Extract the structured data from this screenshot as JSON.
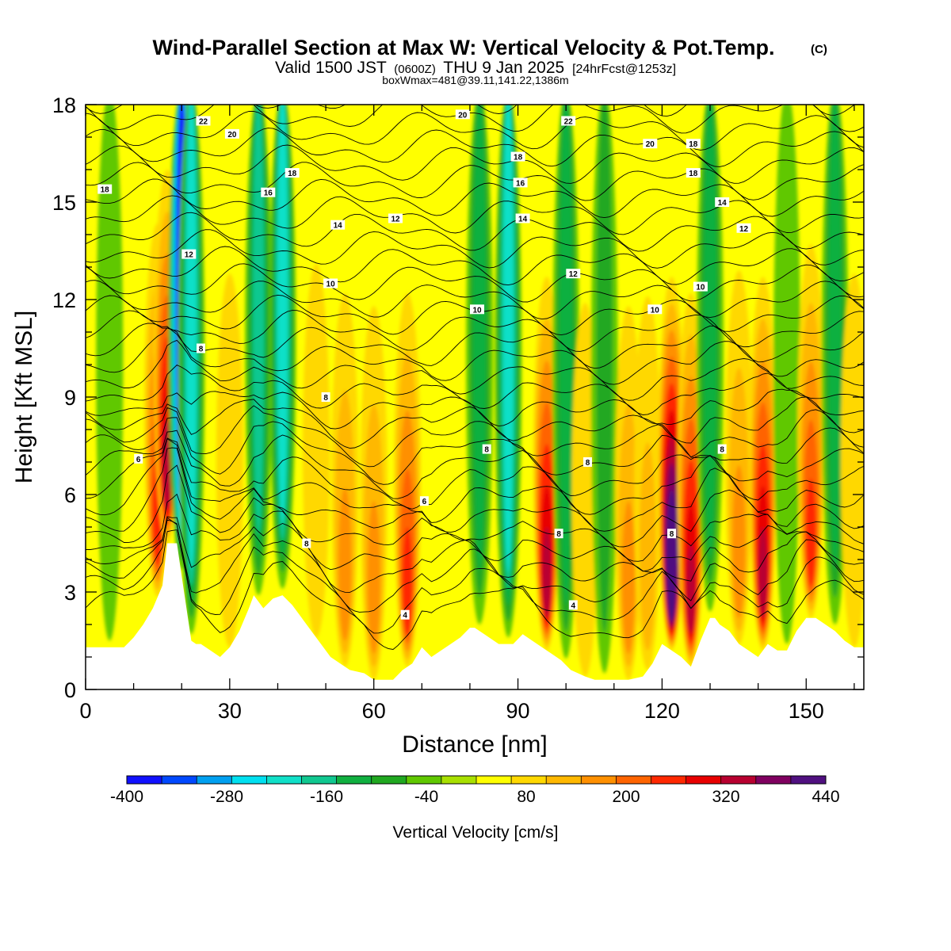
{
  "header": {
    "title": "Wind-Parallel Section at Max W: Vertical Velocity & Pot.Temp.",
    "copyright": "(C)",
    "valid_prefix": "Valid 1500 JST",
    "valid_utc": "(0600Z)",
    "valid_date": "THU 9 Jan 2025",
    "forecast_info": "[24hrFcst@1253z]",
    "box_info": "boxWmax=481@39.11,141.22,1386m"
  },
  "chart_data": {
    "type": "heatmap",
    "title": "Wind-Parallel Section at Max W: Vertical Velocity & Pot.Temp.",
    "xlabel": "Distance [nm]",
    "ylabel": "Height [Kft MSL]",
    "xlim": [
      0,
      162
    ],
    "ylim": [
      0,
      18
    ],
    "x_ticks": [
      "0",
      "30",
      "60",
      "90",
      "120",
      "150"
    ],
    "y_ticks": [
      "0",
      "3",
      "6",
      "9",
      "12",
      "15",
      "18"
    ],
    "colorbar": {
      "label": "Vertical Velocity [cm/s]",
      "min": -400,
      "max": 440,
      "step": 40,
      "tick_labels": [
        "-400",
        "-280",
        "-160",
        "-40",
        "80",
        "200",
        "320",
        "440"
      ],
      "colors": [
        "#1010ff",
        "#0048ff",
        "#00a0f0",
        "#00e0f0",
        "#10e0c8",
        "#10c890",
        "#10b040",
        "#20a820",
        "#60c800",
        "#a8e000",
        "#ffff00",
        "#ffd800",
        "#ffb800",
        "#ff9000",
        "#ff6400",
        "#ff2800",
        "#e80000",
        "#b80030",
        "#800060",
        "#501080"
      ]
    },
    "w_columns": [
      {
        "x": 5,
        "peak_cms": -40
      },
      {
        "x": 15,
        "peak_cms": 200
      },
      {
        "x": 17,
        "peak_cms": 280
      },
      {
        "x": 20,
        "peak_cms": -400
      },
      {
        "x": 22,
        "peak_cms": -200
      },
      {
        "x": 30,
        "peak_cms": 40
      },
      {
        "x": 36,
        "peak_cms": -160
      },
      {
        "x": 41,
        "peak_cms": -200
      },
      {
        "x": 48,
        "peak_cms": 40
      },
      {
        "x": 54,
        "peak_cms": 120
      },
      {
        "x": 60,
        "peak_cms": 120
      },
      {
        "x": 67,
        "peak_cms": 200
      },
      {
        "x": 75,
        "peak_cms": 0
      },
      {
        "x": 82,
        "peak_cms": -120
      },
      {
        "x": 88,
        "peak_cms": -200
      },
      {
        "x": 96,
        "peak_cms": 280
      },
      {
        "x": 100,
        "peak_cms": -120
      },
      {
        "x": 104,
        "peak_cms": 40
      },
      {
        "x": 108,
        "peak_cms": -80
      },
      {
        "x": 113,
        "peak_cms": 120
      },
      {
        "x": 117,
        "peak_cms": 80
      },
      {
        "x": 122,
        "peak_cms": 440
      },
      {
        "x": 126,
        "peak_cms": 280
      },
      {
        "x": 130,
        "peak_cms": -120
      },
      {
        "x": 136,
        "peak_cms": 120
      },
      {
        "x": 141,
        "peak_cms": 280
      },
      {
        "x": 146,
        "peak_cms": -40
      },
      {
        "x": 151,
        "peak_cms": 200
      },
      {
        "x": 156,
        "peak_cms": -120
      },
      {
        "x": 160,
        "peak_cms": 40
      }
    ],
    "terrain": {
      "x": [
        0,
        2,
        8,
        10,
        12,
        14,
        16,
        17,
        19,
        20,
        21,
        22,
        23,
        24,
        26,
        28,
        30,
        32,
        34,
        35,
        37,
        39,
        41,
        43,
        45,
        47,
        49,
        51,
        53,
        55,
        58,
        60,
        64,
        66,
        68,
        70,
        72,
        74,
        76,
        78,
        80,
        81,
        83,
        86,
        89,
        91,
        93,
        95,
        97,
        99,
        101,
        104,
        106,
        108,
        110,
        113,
        116,
        118,
        120,
        122,
        124,
        126,
        128,
        130,
        131,
        132,
        134,
        136,
        138,
        140,
        142,
        144,
        146,
        148,
        150,
        152,
        154,
        156,
        158,
        160,
        162
      ],
      "kft": [
        1.3,
        1.3,
        1.3,
        1.6,
        2.0,
        2.5,
        3.2,
        4.5,
        4.5,
        3.5,
        2.5,
        1.5,
        1.4,
        1.4,
        1.2,
        1.0,
        1.3,
        1.8,
        2.5,
        2.9,
        2.5,
        2.8,
        2.9,
        2.6,
        2.2,
        1.8,
        1.4,
        1.0,
        0.8,
        0.6,
        0.5,
        0.3,
        0.3,
        0.6,
        0.8,
        1.3,
        1.0,
        1.2,
        1.4,
        1.6,
        1.9,
        1.9,
        1.7,
        1.4,
        1.4,
        1.7,
        1.5,
        1.3,
        1.1,
        0.9,
        0.6,
        0.4,
        0.3,
        0.3,
        0.3,
        0.3,
        0.4,
        0.8,
        1.4,
        1.2,
        1.0,
        0.7,
        1.5,
        2.2,
        2.2,
        2.0,
        1.8,
        1.4,
        1.2,
        1.0,
        1.4,
        1.2,
        1.2,
        1.8,
        2.2,
        2.2,
        2.0,
        1.8,
        1.5,
        1.3,
        1.3
      ]
    },
    "theta_levels": [
      4,
      6,
      8,
      10,
      12,
      14,
      16,
      18,
      20,
      22
    ],
    "theta_contour_labels": [
      {
        "text": "18",
        "x": 4,
        "y": 15.4
      },
      {
        "text": "22",
        "x": 24.5,
        "y": 17.5
      },
      {
        "text": "20",
        "x": 30.5,
        "y": 17.1
      },
      {
        "text": "18",
        "x": 43,
        "y": 15.9
      },
      {
        "text": "16",
        "x": 38,
        "y": 15.3
      },
      {
        "text": "12",
        "x": 21.5,
        "y": 13.4
      },
      {
        "text": "14",
        "x": 52.5,
        "y": 14.3
      },
      {
        "text": "12",
        "x": 64.5,
        "y": 14.5
      },
      {
        "text": "10",
        "x": 51,
        "y": 12.5
      },
      {
        "text": "8",
        "x": 24,
        "y": 10.5
      },
      {
        "text": "8",
        "x": 50,
        "y": 9.0
      },
      {
        "text": "6",
        "x": 11,
        "y": 7.1
      },
      {
        "text": "8",
        "x": 46,
        "y": 4.5
      },
      {
        "text": "6",
        "x": 70.5,
        "y": 5.8
      },
      {
        "text": "4",
        "x": 66.5,
        "y": 2.3
      },
      {
        "text": "20",
        "x": 78.5,
        "y": 17.7
      },
      {
        "text": "22",
        "x": 100.5,
        "y": 17.5
      },
      {
        "text": "18",
        "x": 90,
        "y": 16.4
      },
      {
        "text": "16",
        "x": 90.5,
        "y": 15.6
      },
      {
        "text": "14",
        "x": 91,
        "y": 14.5
      },
      {
        "text": "12",
        "x": 101.5,
        "y": 12.8
      },
      {
        "text": "10",
        "x": 81.5,
        "y": 11.7
      },
      {
        "text": "8",
        "x": 83.5,
        "y": 7.4
      },
      {
        "text": "8",
        "x": 104.5,
        "y": 7.0
      },
      {
        "text": "8",
        "x": 98.5,
        "y": 4.8
      },
      {
        "text": "4",
        "x": 101.5,
        "y": 2.6
      },
      {
        "text": "20",
        "x": 117.5,
        "y": 16.8
      },
      {
        "text": "18",
        "x": 126.5,
        "y": 16.8
      },
      {
        "text": "18",
        "x": 126.5,
        "y": 15.9
      },
      {
        "text": "14",
        "x": 132.5,
        "y": 15.0
      },
      {
        "text": "12",
        "x": 137,
        "y": 14.2
      },
      {
        "text": "10",
        "x": 128,
        "y": 12.4
      },
      {
        "text": "10",
        "x": 118.5,
        "y": 11.7
      },
      {
        "text": "8",
        "x": 132.5,
        "y": 7.4
      },
      {
        "text": "8",
        "x": 122,
        "y": 4.8
      }
    ]
  }
}
